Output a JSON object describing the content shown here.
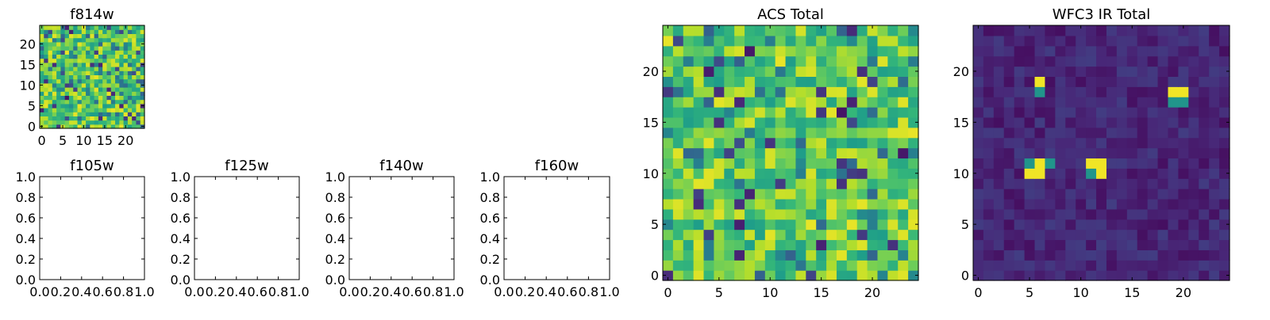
{
  "chart_data": [
    {
      "type": "heatmap",
      "title": "f814w",
      "xlim": [
        -0.5,
        24.5
      ],
      "ylim": [
        -0.5,
        24.5
      ],
      "x_ticks": [
        0,
        5,
        10,
        15,
        20
      ],
      "y_ticks": [
        0,
        5,
        10,
        15,
        20
      ],
      "grid_size": [
        25,
        25
      ],
      "colormap": "viridis",
      "note_values": "normalized 0-1 intensity, mostly high (noisy field)"
    },
    {
      "type": "line",
      "title": "f105w",
      "xlim": [
        0.0,
        1.0
      ],
      "ylim": [
        0.0,
        1.0
      ],
      "x_ticks": [
        "0.0",
        "0.2",
        "0.4",
        "0.6",
        "0.8",
        "1.0"
      ],
      "y_ticks": [
        "0.0",
        "0.2",
        "0.4",
        "0.6",
        "0.8",
        "1.0"
      ],
      "series": []
    },
    {
      "type": "line",
      "title": "f125w",
      "xlim": [
        0.0,
        1.0
      ],
      "ylim": [
        0.0,
        1.0
      ],
      "x_ticks": [
        "0.0",
        "0.2",
        "0.4",
        "0.6",
        "0.8",
        "1.0"
      ],
      "y_ticks": [
        "0.0",
        "0.2",
        "0.4",
        "0.6",
        "0.8",
        "1.0"
      ],
      "series": []
    },
    {
      "type": "line",
      "title": "f140w",
      "xlim": [
        0.0,
        1.0
      ],
      "ylim": [
        0.0,
        1.0
      ],
      "x_ticks": [
        "0.0",
        "0.2",
        "0.4",
        "0.6",
        "0.8",
        "1.0"
      ],
      "y_ticks": [
        "0.0",
        "0.2",
        "0.4",
        "0.6",
        "0.8",
        "1.0"
      ],
      "series": []
    },
    {
      "type": "line",
      "title": "f160w",
      "xlim": [
        0.0,
        1.0
      ],
      "ylim": [
        0.0,
        1.0
      ],
      "x_ticks": [
        "0.0",
        "0.2",
        "0.4",
        "0.6",
        "0.8",
        "1.0"
      ],
      "y_ticks": [
        "0.0",
        "0.2",
        "0.4",
        "0.6",
        "0.8",
        "1.0"
      ],
      "series": []
    },
    {
      "type": "heatmap",
      "title": "ACS Total",
      "xlim": [
        -0.5,
        24.5
      ],
      "ylim": [
        -0.5,
        24.5
      ],
      "x_ticks": [
        0,
        5,
        10,
        15,
        20
      ],
      "y_ticks": [
        0,
        5,
        10,
        15,
        20
      ],
      "grid_size": [
        25,
        25
      ],
      "colormap": "viridis"
    },
    {
      "type": "heatmap",
      "title": "WFC3 IR Total",
      "xlim": [
        -0.5,
        24.5
      ],
      "ylim": [
        -0.5,
        24.5
      ],
      "x_ticks": [
        0,
        5,
        10,
        15,
        20
      ],
      "y_ticks": [
        0,
        5,
        10,
        15,
        20
      ],
      "grid_size": [
        25,
        25
      ],
      "colormap": "viridis",
      "bright_cells": [
        [
          5,
          10
        ],
        [
          6,
          10
        ],
        [
          6,
          11
        ],
        [
          6,
          19
        ],
        [
          11,
          11
        ],
        [
          12,
          11
        ],
        [
          12,
          10
        ],
        [
          19,
          18
        ],
        [
          20,
          18
        ]
      ],
      "medium_cells": [
        [
          5,
          11
        ],
        [
          7,
          11
        ],
        [
          11,
          10
        ],
        [
          19,
          17
        ],
        [
          20,
          17
        ],
        [
          6,
          18
        ]
      ]
    }
  ]
}
